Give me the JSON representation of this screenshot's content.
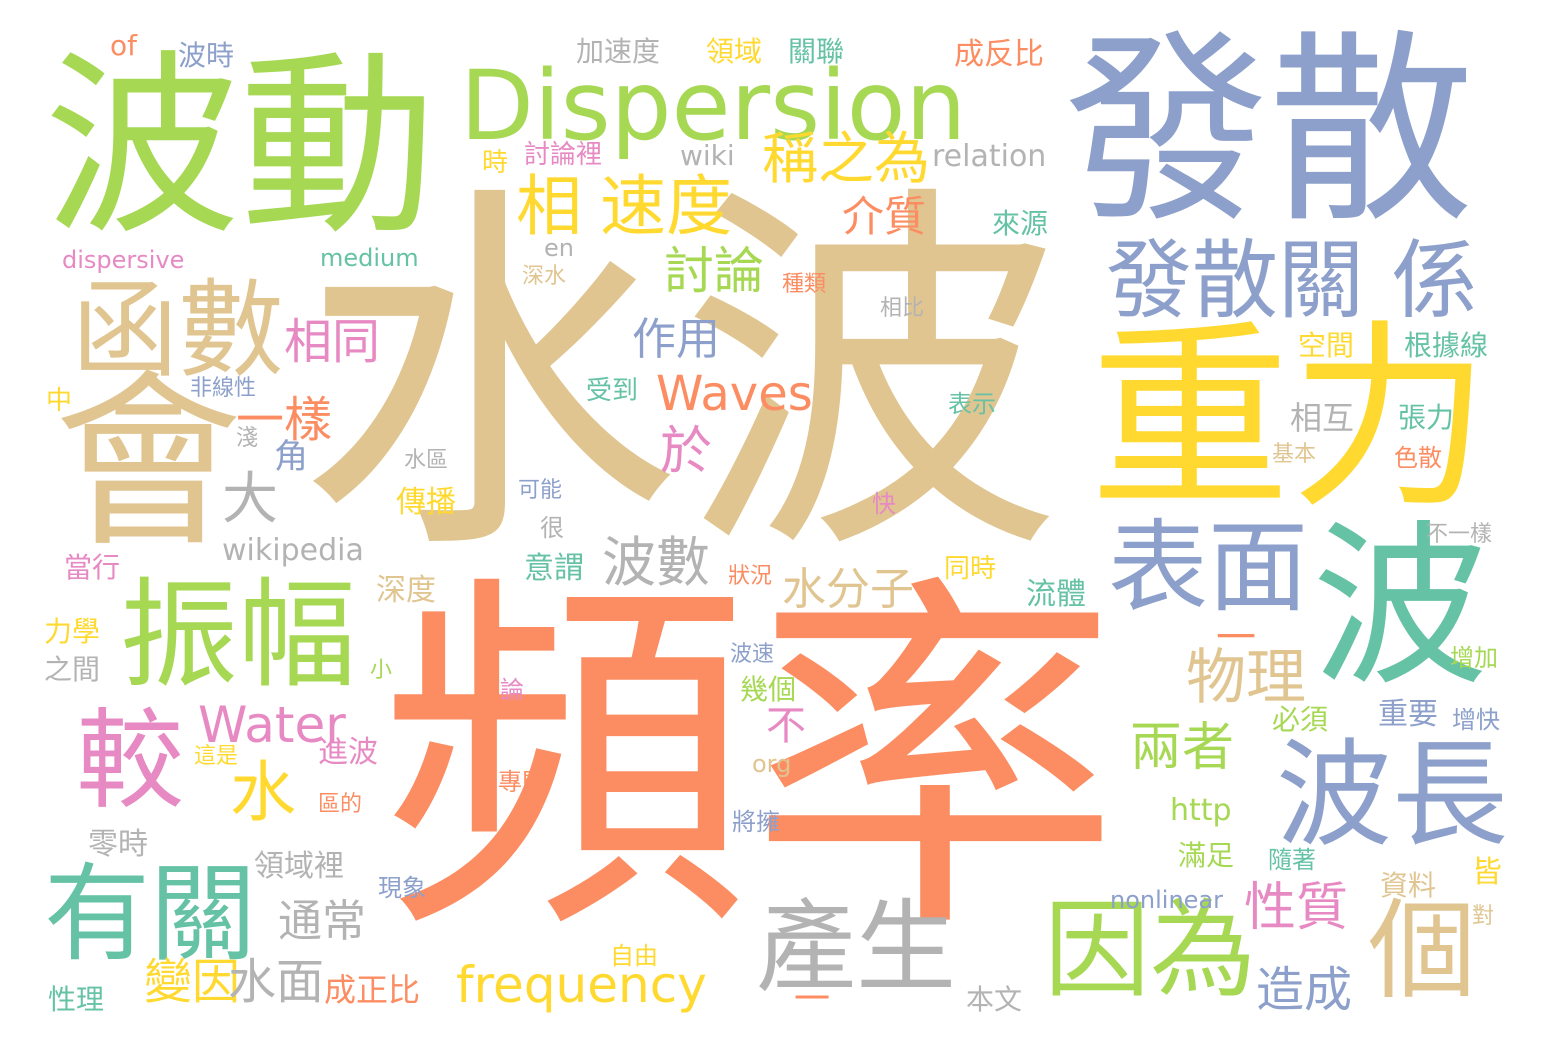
{
  "palette": {
    "tan": "#e0c591",
    "coral": "#fc8d62",
    "periwinkle": "#8da0cb",
    "green": "#a6d854",
    "yellow": "#ffd92f",
    "teal": "#66c2a5",
    "pink": "#e78ac3",
    "gray": "#b3b3b3"
  },
  "words": [
    {
      "text": "水波",
      "color": "#e0c591"
    },
    {
      "text": "頻率",
      "color": "#fc8d62"
    },
    {
      "text": "發散",
      "color": "#8da0cb"
    },
    {
      "text": "波動",
      "color": "#a6d854"
    },
    {
      "text": "重力",
      "color": "#ffd92f"
    },
    {
      "text": "Dispersion",
      "color": "#a6d854"
    },
    {
      "text": "會",
      "color": "#e0c591"
    },
    {
      "text": "波",
      "color": "#66c2a5"
    },
    {
      "text": "函數",
      "color": "#e0c591"
    },
    {
      "text": "振幅",
      "color": "#a6d854"
    },
    {
      "text": "發散關 係",
      "color": "#8da0cb"
    },
    {
      "text": "表面",
      "color": "#8da0cb"
    },
    {
      "text": "波長",
      "color": "#8da0cb"
    },
    {
      "text": "有關",
      "color": "#66c2a5"
    },
    {
      "text": "因為",
      "color": "#a6d854"
    },
    {
      "text": "產生",
      "color": "#b3b3b3"
    },
    {
      "text": "個",
      "color": "#e0c591"
    },
    {
      "text": "較",
      "color": "#e78ac3"
    },
    {
      "text": "速度",
      "color": "#ffd92f"
    },
    {
      "text": "相",
      "color": "#ffd92f"
    },
    {
      "text": "稱之為",
      "color": "#ffd92f"
    },
    {
      "text": "Waves",
      "color": "#fc8d62"
    },
    {
      "text": "討論",
      "color": "#a6d854"
    },
    {
      "text": "水",
      "color": "#ffd92f"
    },
    {
      "text": "Water",
      "color": "#e78ac3"
    },
    {
      "text": "frequency",
      "color": "#ffd92f"
    },
    {
      "text": "波數",
      "color": "#b3b3b3"
    },
    {
      "text": "水分子",
      "color": "#e0c591"
    },
    {
      "text": "物理",
      "color": "#e0c591"
    },
    {
      "text": "兩者",
      "color": "#a6d854"
    },
    {
      "text": "性質",
      "color": "#e78ac3"
    },
    {
      "text": "造成",
      "color": "#8da0cb"
    },
    {
      "text": "介質",
      "color": "#fc8d62"
    },
    {
      "text": "作用",
      "color": "#8da0cb"
    },
    {
      "text": "相同",
      "color": "#e78ac3"
    },
    {
      "text": "一樣",
      "color": "#fc8d62"
    },
    {
      "text": "大",
      "color": "#b3b3b3"
    },
    {
      "text": "於",
      "color": "#e78ac3"
    },
    {
      "text": "不",
      "color": "#e78ac3"
    },
    {
      "text": "變因",
      "color": "#ffd92f"
    },
    {
      "text": "水面",
      "color": "#b3b3b3"
    },
    {
      "text": "通常",
      "color": "#b3b3b3"
    },
    {
      "text": "wikipedia",
      "color": "#b3b3b3"
    },
    {
      "text": "relation",
      "color": "#b3b3b3"
    },
    {
      "text": "wiki",
      "color": "#b3b3b3"
    },
    {
      "text": "加速度",
      "color": "#b3b3b3"
    },
    {
      "text": "領域",
      "color": "#ffd92f"
    },
    {
      "text": "關聯",
      "color": "#66c2a5"
    },
    {
      "text": "成反比",
      "color": "#fc8d62"
    },
    {
      "text": "波時",
      "color": "#8da0cb"
    },
    {
      "text": "of",
      "color": "#fc8d62"
    },
    {
      "text": "時",
      "color": "#ffd92f"
    },
    {
      "text": "討論裡",
      "color": "#e78ac3"
    },
    {
      "text": "dispersive",
      "color": "#e78ac3"
    },
    {
      "text": "medium",
      "color": "#66c2a5"
    },
    {
      "text": "en",
      "color": "#b3b3b3"
    },
    {
      "text": "深水",
      "color": "#e0c591"
    },
    {
      "text": "種類",
      "color": "#fc8d62"
    },
    {
      "text": "來源",
      "color": "#66c2a5"
    },
    {
      "text": "相比",
      "color": "#b3b3b3"
    },
    {
      "text": "空間",
      "color": "#ffd92f"
    },
    {
      "text": "根據線",
      "color": "#66c2a5"
    },
    {
      "text": "非線性",
      "color": "#8da0cb"
    },
    {
      "text": "受到",
      "color": "#66c2a5"
    },
    {
      "text": "表示",
      "color": "#66c2a5"
    },
    {
      "text": "中",
      "color": "#ffd92f"
    },
    {
      "text": "淺",
      "color": "#b3b3b3"
    },
    {
      "text": "角",
      "color": "#8da0cb"
    },
    {
      "text": "水區",
      "color": "#b3b3b3"
    },
    {
      "text": "相互",
      "color": "#b3b3b3"
    },
    {
      "text": "基本",
      "color": "#e0c591"
    },
    {
      "text": "張力",
      "color": "#66c2a5"
    },
    {
      "text": "色散",
      "color": "#fc8d62"
    },
    {
      "text": "傳播",
      "color": "#ffd92f"
    },
    {
      "text": "可能",
      "color": "#8da0cb"
    },
    {
      "text": "很",
      "color": "#b3b3b3"
    },
    {
      "text": "快",
      "color": "#e78ac3"
    },
    {
      "text": "不一樣",
      "color": "#b3b3b3"
    },
    {
      "text": "當行",
      "color": "#e78ac3"
    },
    {
      "text": "意謂",
      "color": "#66c2a5"
    },
    {
      "text": "狀況",
      "color": "#fc8d62"
    },
    {
      "text": "同時",
      "color": "#ffd92f"
    },
    {
      "text": "深度",
      "color": "#e0c591"
    },
    {
      "text": "流體",
      "color": "#66c2a5"
    },
    {
      "text": "力學",
      "color": "#ffd92f"
    },
    {
      "text": "之間",
      "color": "#b3b3b3"
    },
    {
      "text": "小",
      "color": "#a6d854"
    },
    {
      "text": "波速",
      "color": "#8da0cb"
    },
    {
      "text": "一",
      "color": "#fc8d62"
    },
    {
      "text": "增加",
      "color": "#a6d854"
    },
    {
      "text": "論",
      "color": "#e78ac3"
    },
    {
      "text": "幾個",
      "color": "#a6d854"
    },
    {
      "text": "必須",
      "color": "#a6d854"
    },
    {
      "text": "重要",
      "color": "#8da0cb"
    },
    {
      "text": "增快",
      "color": "#8da0cb"
    },
    {
      "text": "這是",
      "color": "#ffd92f"
    },
    {
      "text": "進波",
      "color": "#e78ac3"
    },
    {
      "text": "org",
      "color": "#e0c591"
    },
    {
      "text": "專門",
      "color": "#fc8d62"
    },
    {
      "text": "區的",
      "color": "#fc8d62"
    },
    {
      "text": "http",
      "color": "#a6d854"
    },
    {
      "text": "將擁",
      "color": "#8da0cb"
    },
    {
      "text": "零時",
      "color": "#b3b3b3"
    },
    {
      "text": "領域裡",
      "color": "#b3b3b3"
    },
    {
      "text": "滿足",
      "color": "#a6d854"
    },
    {
      "text": "隨著",
      "color": "#66c2a5"
    },
    {
      "text": "現象",
      "color": "#8da0cb"
    },
    {
      "text": "nonlinear",
      "color": "#8da0cb"
    },
    {
      "text": "資料",
      "color": "#e0c591"
    },
    {
      "text": "皆",
      "color": "#ffd92f"
    },
    {
      "text": "對",
      "color": "#e0c591"
    },
    {
      "text": "自由",
      "color": "#ffd92f"
    },
    {
      "text": "性理",
      "color": "#66c2a5"
    },
    {
      "text": "成正比",
      "color": "#fc8d62"
    },
    {
      "text": "一",
      "color": "#fc8d62"
    },
    {
      "text": "本文",
      "color": "#b3b3b3"
    }
  ]
}
